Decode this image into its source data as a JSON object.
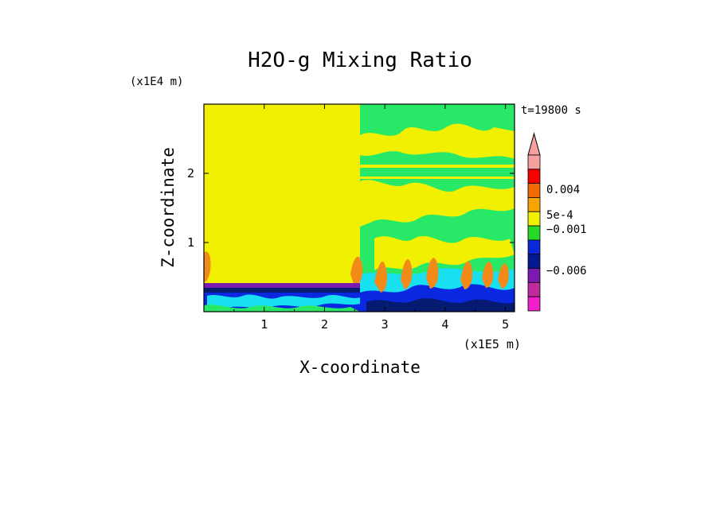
{
  "chart_data": {
    "type": "heatmap",
    "title": "H2O-g Mixing Ratio",
    "xlabel": "X-coordinate",
    "ylabel": "Z-coordinate",
    "x_scale_label": "(x1E5 m)",
    "y_scale_label": "(x1E4 m)",
    "time_label": "t=19800 s",
    "xlim": [
      0,
      5.15
    ],
    "ylim": [
      0,
      3.0
    ],
    "x_ticks": [
      "1",
      "2",
      "3",
      "4",
      "5"
    ],
    "y_ticks": [
      "1",
      "2"
    ],
    "colorbar": {
      "colors": [
        "#f7a0a0",
        "#f60000",
        "#f26a00",
        "#f7a300",
        "#f0f000",
        "#28d828",
        "#0a28d8",
        "#051a90",
        "#7a1ab0",
        "#c02c9e",
        "#f020c8"
      ],
      "labels": [
        "0.004",
        "5e-4",
        "−0.001",
        "−0.006"
      ]
    },
    "colors": {
      "background_field": "#f0f000",
      "green": "#28e868",
      "cyan": "#18e0f0",
      "blue": "#0a28e0",
      "navy": "#051a70",
      "purple": "#7a1ab0",
      "orange": "#f28a1a"
    }
  }
}
